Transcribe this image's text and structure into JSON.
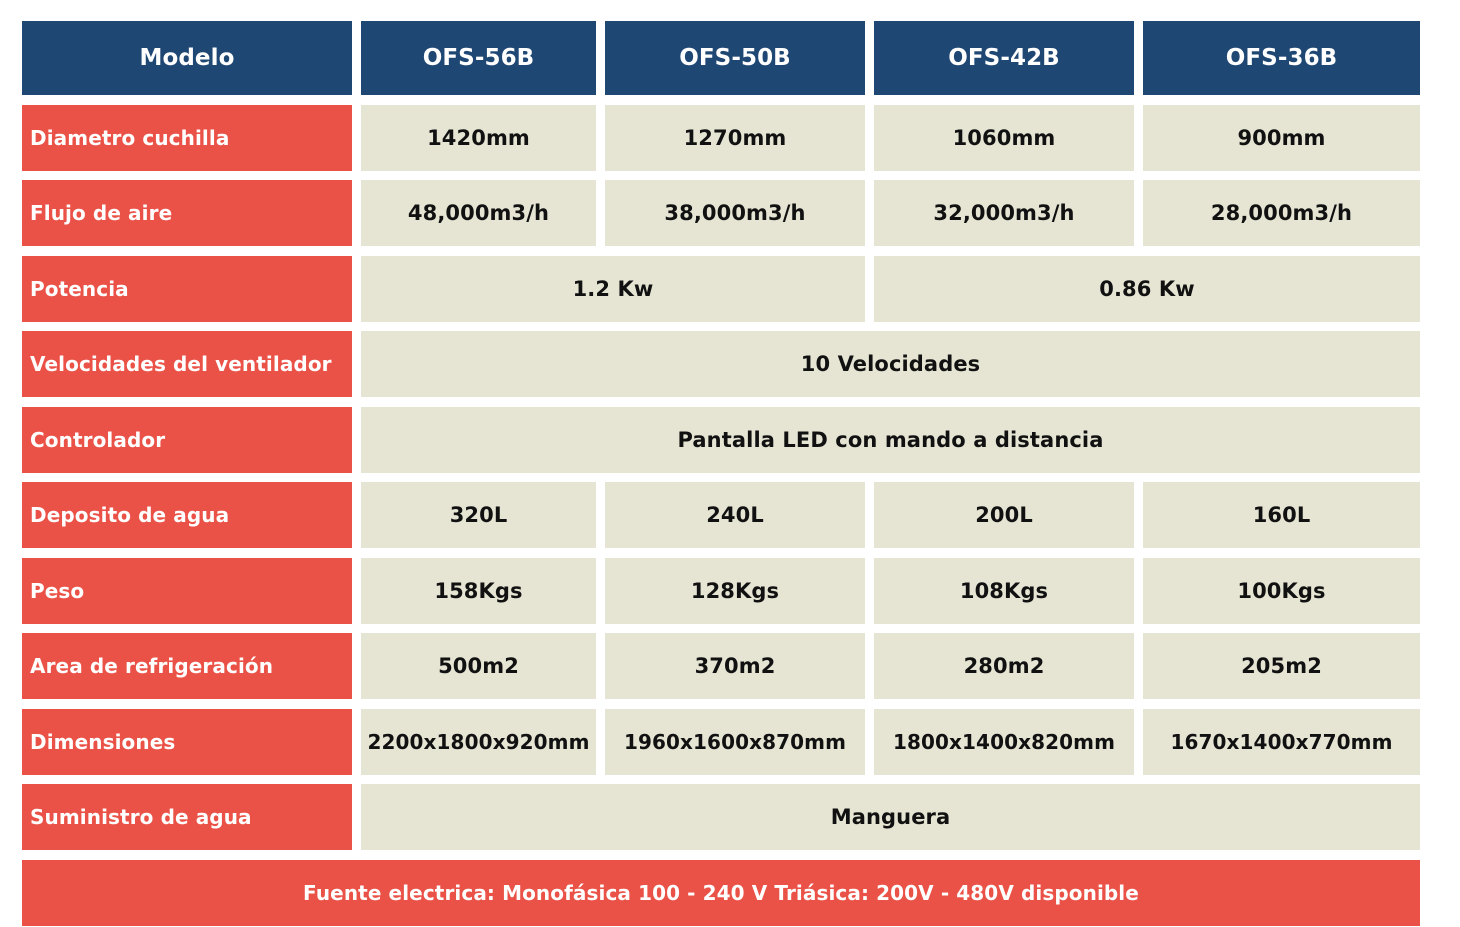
{
  "header": {
    "label": "Modelo",
    "models": [
      "OFS-56B",
      "OFS-50B",
      "OFS-42B",
      "OFS-36B"
    ]
  },
  "rows": {
    "diametro": {
      "label": "Diametro cuchilla",
      "values": [
        "1420mm",
        "1270mm",
        "1060mm",
        "900mm"
      ]
    },
    "flujo": {
      "label": "Flujo de aire",
      "values": [
        "48,000m3/h",
        "38,000m3/h",
        "32,000m3/h",
        "28,000m3/h"
      ]
    },
    "potencia": {
      "label": "Potencia",
      "values": [
        "1.2 Kw",
        "0.86 Kw"
      ]
    },
    "velocidades": {
      "label": "Velocidades del ventilador",
      "value": "10 Velocidades"
    },
    "controlador": {
      "label": "Controlador",
      "value": "Pantalla LED con mando a distancia"
    },
    "deposito": {
      "label": "Deposito de agua",
      "values": [
        "320L",
        "240L",
        "200L",
        "160L"
      ]
    },
    "peso": {
      "label": "Peso",
      "values": [
        "158Kgs",
        "128Kgs",
        "108Kgs",
        "100Kgs"
      ]
    },
    "area": {
      "label": "Area de refrigeración",
      "values": [
        "500m2",
        "370m2",
        "280m2",
        "205m2"
      ]
    },
    "dimensiones": {
      "label": "Dimensiones",
      "values": [
        "2200x1800x920mm",
        "1960x1600x870mm",
        "1800x1400x820mm",
        "1670x1400x770mm"
      ]
    },
    "suministro": {
      "label": "Suministro de agua",
      "value": "Manguera"
    }
  },
  "footer": {
    "text": "Fuente electrica: Monofásica 100 - 240 V Triásica: 200V - 480V disponible"
  },
  "colors": {
    "header_bg": "#1f4774",
    "label_bg": "#eb5247",
    "value_bg": "#e6e5d4"
  }
}
